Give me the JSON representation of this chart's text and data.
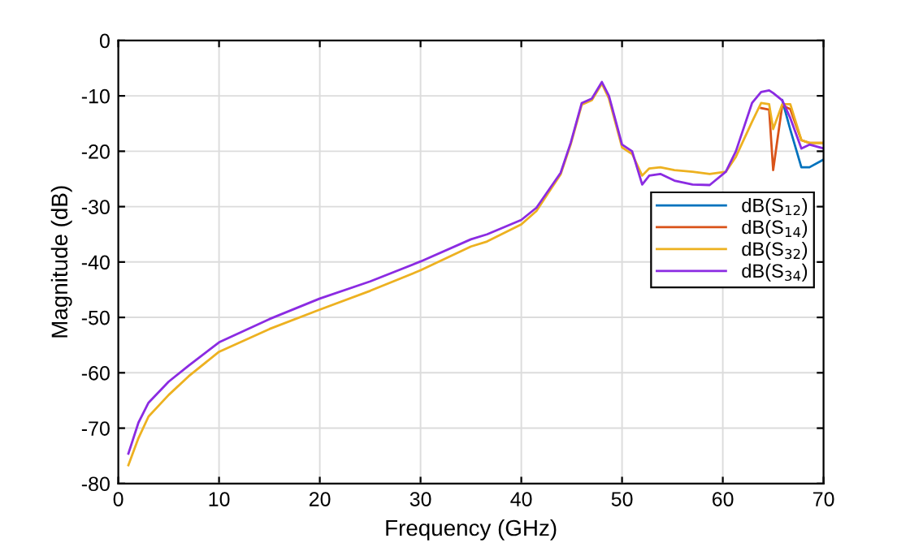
{
  "chart_data": {
    "type": "line",
    "xlabel": "Frequency (GHz)",
    "ylabel": "Magnitude (dB)",
    "x": [
      1,
      2,
      3,
      5,
      7,
      10,
      15,
      20,
      25,
      30,
      35,
      36.6,
      40,
      41.5,
      42.8,
      43.9,
      44.9,
      46,
      47,
      48,
      48.7,
      50,
      51,
      52,
      52.7,
      53.8,
      55.2,
      57,
      58.7,
      60.3,
      61.3,
      62.9,
      63.8,
      64.6,
      65,
      65.9,
      66.7,
      67.8,
      68.6,
      70
    ],
    "series": [
      {
        "name": "dB(S$_{12}$)",
        "color": "#0072bd",
        "values": [
          null,
          null,
          null,
          null,
          null,
          null,
          null,
          null,
          null,
          null,
          null,
          null,
          null,
          null,
          null,
          null,
          null,
          null,
          null,
          null,
          null,
          null,
          null,
          null,
          null,
          null,
          null,
          null,
          null,
          null,
          null,
          null,
          null,
          null,
          null,
          -10.8,
          -16.1,
          -22.9,
          -22.9,
          -21.5
        ]
      },
      {
        "name": "dB(S$_{14}$)",
        "color": "#d95319",
        "values": [
          null,
          null,
          null,
          null,
          null,
          null,
          null,
          null,
          null,
          null,
          null,
          null,
          null,
          null,
          null,
          null,
          null,
          null,
          null,
          null,
          null,
          null,
          null,
          null,
          null,
          null,
          null,
          null,
          null,
          null,
          null,
          null,
          -12.2,
          -12.5,
          -23.4,
          -11.7,
          -12.4,
          -18,
          -18.5,
          -18.5
        ]
      },
      {
        "name": "dB(S$_{32}$)",
        "color": "#edb120",
        "values": [
          -76.7,
          -71.8,
          -67.9,
          -64,
          -60.6,
          -56.2,
          -52.1,
          -48.6,
          -45.2,
          -41.5,
          -37.2,
          -36.3,
          -33.2,
          -30.8,
          -27.2,
          -24.2,
          -18.8,
          -11.6,
          -10.8,
          -7.8,
          -10.5,
          -19.3,
          -20.5,
          -24.4,
          -23.1,
          -22.9,
          -23.4,
          -23.7,
          -24.1,
          -23.7,
          -21,
          -14.7,
          -11.3,
          -11.5,
          -16,
          -11.5,
          -11.5,
          -18,
          -18.5,
          -18.5
        ]
      },
      {
        "name": "dB(S$_{34}$)",
        "color": "#8b2be2",
        "values": [
          -74.6,
          -69,
          -65.4,
          -61.6,
          -58.7,
          -54.5,
          -50.3,
          -46.6,
          -43.5,
          -39.9,
          -35.9,
          -35.0,
          -32.4,
          -30.2,
          -26.8,
          -23.9,
          -18.5,
          -11.3,
          -10.5,
          -7.5,
          -10,
          -18.8,
          -20,
          -26,
          -24.4,
          -24.1,
          -25.3,
          -26,
          -26.1,
          -23.7,
          -20,
          -11.3,
          -9.3,
          -9,
          -9.5,
          -10.8,
          -14,
          -19.5,
          -18.8,
          -19.5
        ]
      }
    ],
    "xlim": [
      0,
      70
    ],
    "xticks": [
      0,
      10,
      20,
      30,
      40,
      50,
      60,
      70
    ],
    "ylim": [
      -80,
      0
    ],
    "yticks": [
      -80,
      -70,
      -60,
      -50,
      -40,
      -30,
      -20,
      -10,
      0
    ],
    "grid": true,
    "legend": "right",
    "marker": "none",
    "line_style": "solid"
  }
}
